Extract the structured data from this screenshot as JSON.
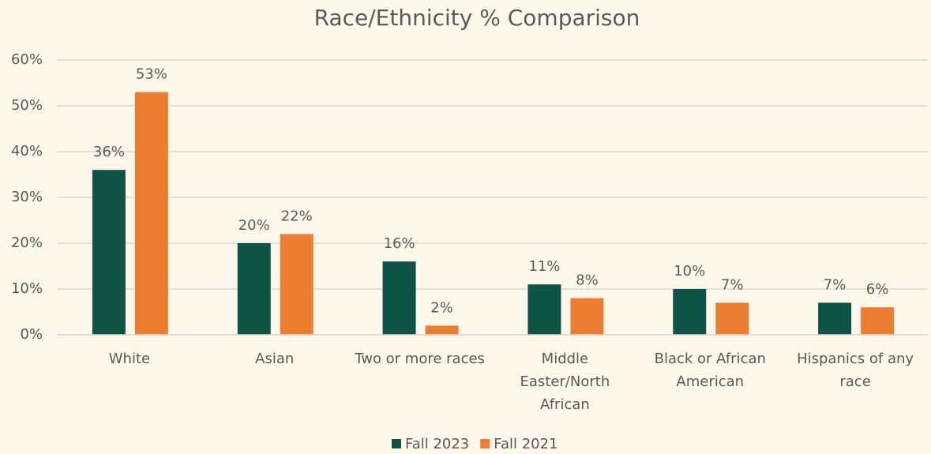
{
  "chart_data": {
    "type": "bar",
    "title": "Race/Ethnicity % Comparison",
    "categories": [
      "White",
      "Asian",
      "Two or more races",
      "Middle Easter/North African",
      "Black or African American",
      "Hispanics of any race"
    ],
    "series": [
      {
        "name": "Fall 2023",
        "color": "#0e5346",
        "values": [
          36,
          20,
          16,
          11,
          10,
          7
        ],
        "value_labels": [
          "36%",
          "20%",
          "16%",
          "11%",
          "10%",
          "7%"
        ]
      },
      {
        "name": "Fall 2021",
        "color": "#ed7d31",
        "values": [
          53,
          22,
          2,
          8,
          7,
          6
        ],
        "value_labels": [
          "53%",
          "22%",
          "2%",
          "8%",
          "7%",
          "6%"
        ]
      }
    ],
    "ylim": [
      0,
      60
    ],
    "yticks": [
      {
        "value": 0,
        "label": "0%"
      },
      {
        "value": 10,
        "label": "10%"
      },
      {
        "value": 20,
        "label": "20%"
      },
      {
        "value": 30,
        "label": "30%"
      },
      {
        "value": 40,
        "label": "40%"
      },
      {
        "value": 50,
        "label": "50%"
      },
      {
        "value": 60,
        "label": "60%"
      }
    ],
    "grid": true,
    "legend": "bottom"
  }
}
